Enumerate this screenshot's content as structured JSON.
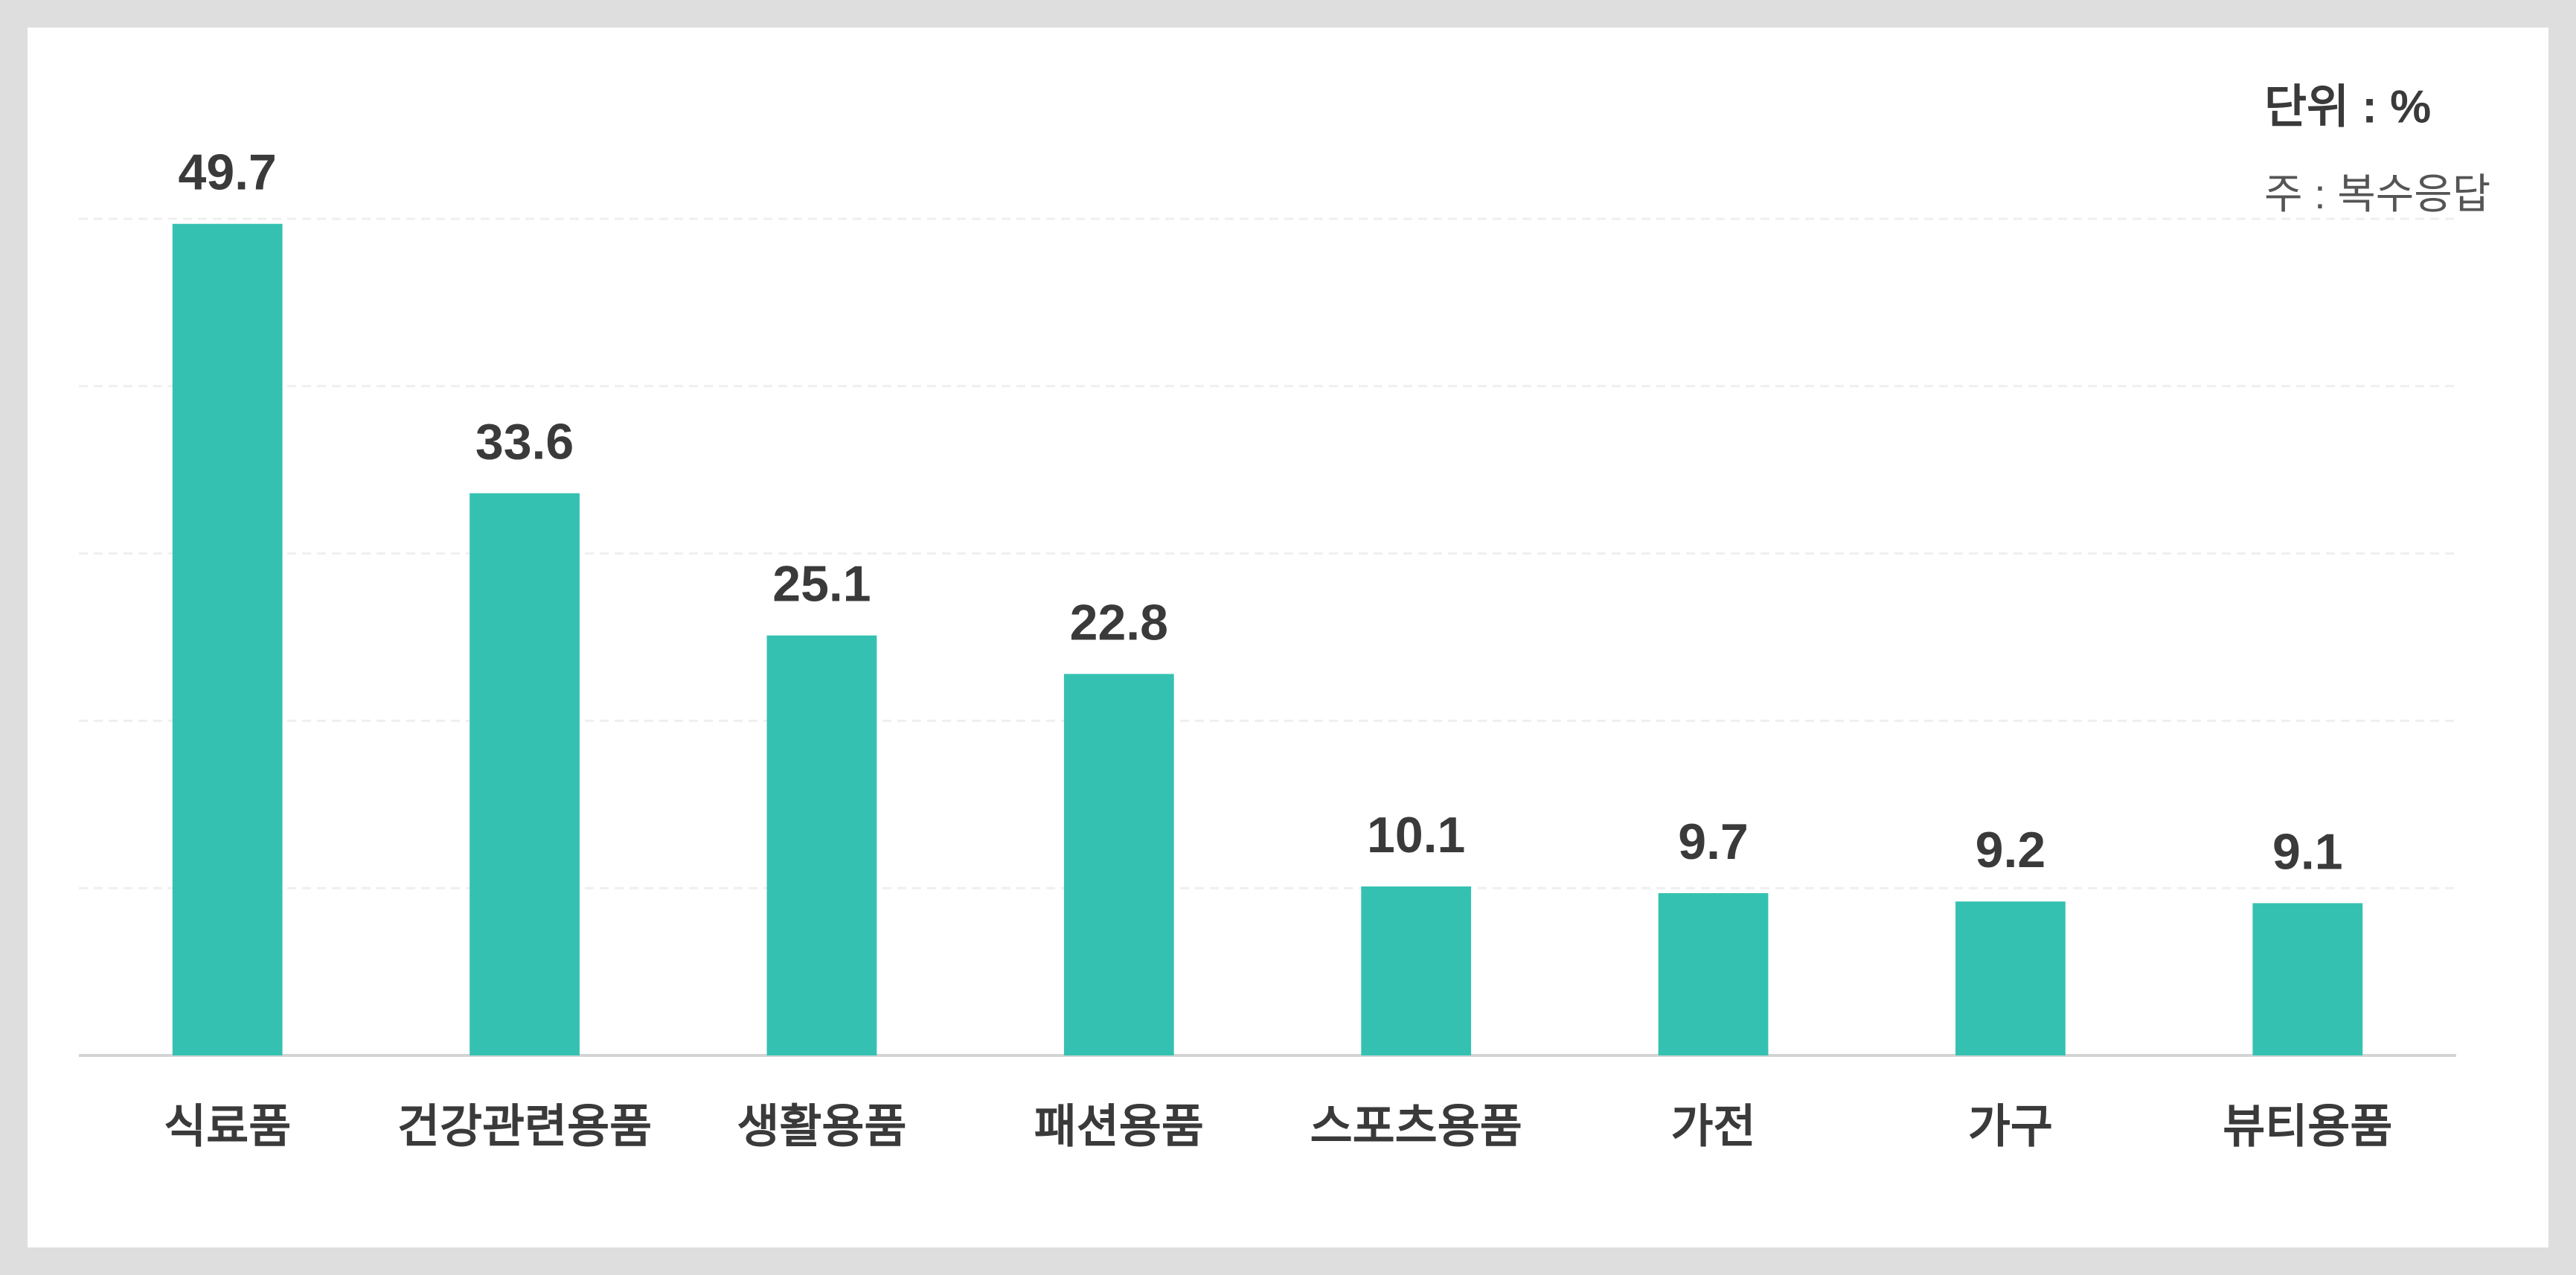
{
  "chart_data": {
    "type": "bar",
    "annotations": [
      "단위 : %",
      "주 : 복수응답"
    ],
    "categories": [
      "식료품",
      "건강관련용품",
      "생활용품",
      "패션용품",
      "스포츠용품",
      "가전",
      "가구",
      "뷰티용품"
    ],
    "values": [
      49.7,
      33.6,
      25.1,
      22.8,
      10.1,
      9.7,
      9.2,
      9.1
    ],
    "color": "#35c1b1",
    "ylim": [
      0,
      50
    ],
    "yticks": [
      0,
      10,
      20,
      30,
      40,
      50
    ],
    "grid": true
  }
}
